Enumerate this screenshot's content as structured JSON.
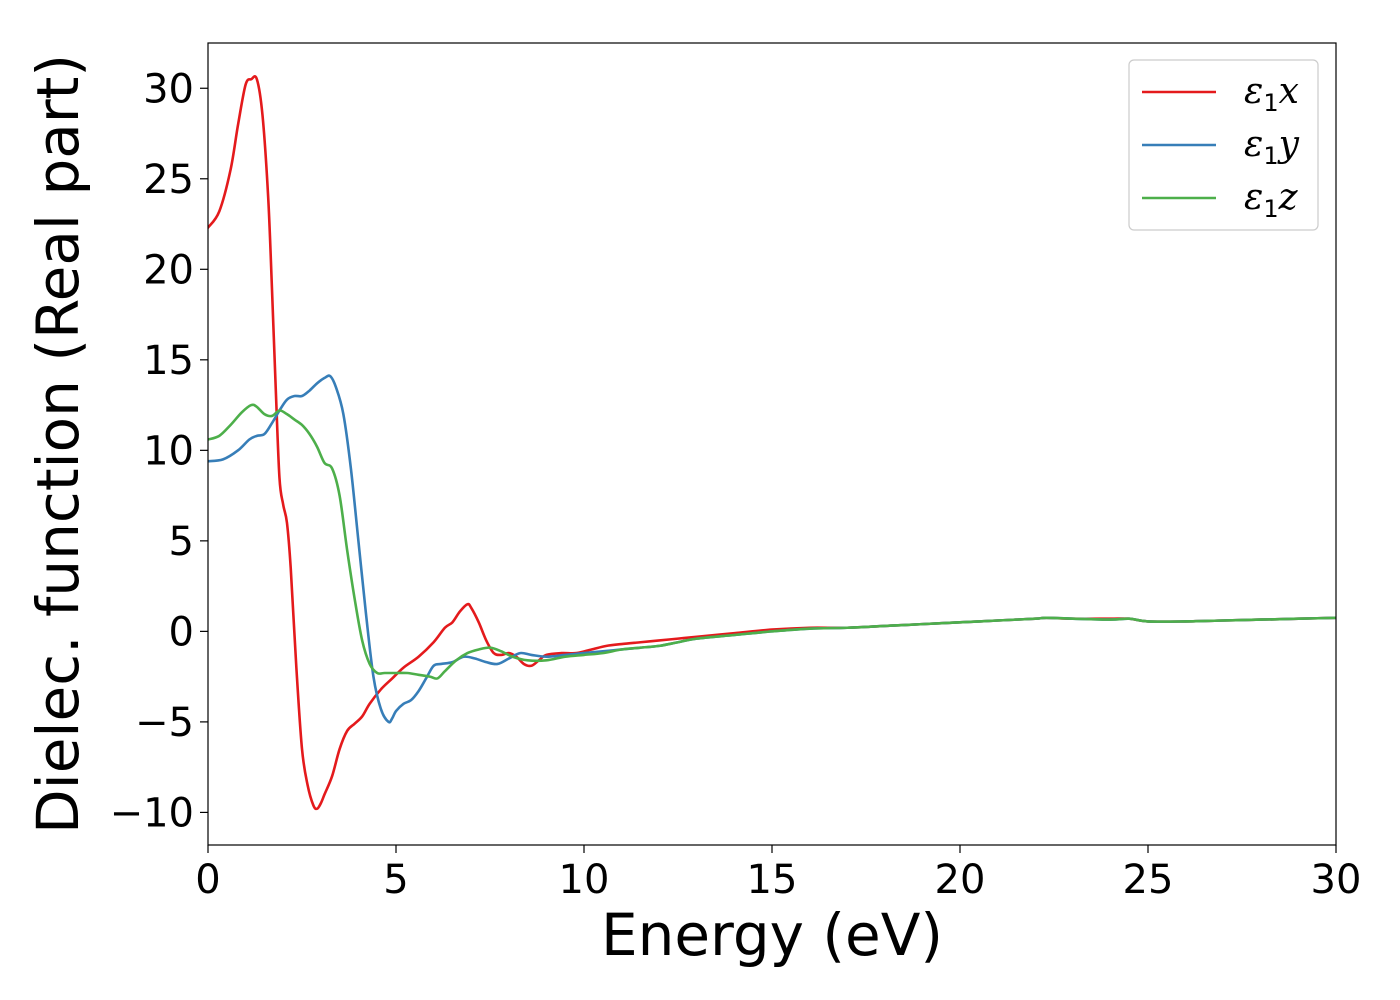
{
  "chart_data": {
    "type": "line",
    "title": "",
    "xlabel": "Energy (eV)",
    "ylabel": "Dielec. function (Real part)",
    "xlim": [
      0,
      30
    ],
    "ylim": [
      -11.8,
      32.5
    ],
    "xticks": [
      0,
      5,
      10,
      15,
      20,
      25,
      30
    ],
    "xtick_labels": [
      "0",
      "5",
      "10",
      "15",
      "20",
      "25",
      "30"
    ],
    "yticks": [
      -10,
      -5,
      0,
      5,
      10,
      15,
      20,
      25,
      30
    ],
    "ytick_labels": [
      "−10",
      "−5",
      "0",
      "5",
      "10",
      "15",
      "20",
      "25",
      "30"
    ],
    "grid": false,
    "legend_position": "top-right",
    "series": [
      {
        "name": "ε1x",
        "legend_main": "ε",
        "legend_sub": "1",
        "legend_var": "x",
        "color": "#e41a1c",
        "x": [
          0,
          0.3,
          0.6,
          0.8,
          1.0,
          1.15,
          1.3,
          1.45,
          1.6,
          1.7,
          1.8,
          1.9,
          2.0,
          2.1,
          2.2,
          2.35,
          2.5,
          2.65,
          2.8,
          2.9,
          3.0,
          3.1,
          3.3,
          3.5,
          3.7,
          3.9,
          4.1,
          4.3,
          4.6,
          4.9,
          5.2,
          5.6,
          6.0,
          6.3,
          6.5,
          6.7,
          6.9,
          7.0,
          7.2,
          7.4,
          7.6,
          7.8,
          8.0,
          8.2,
          8.4,
          8.6,
          8.8,
          9.0,
          9.4,
          9.8,
          10.2,
          10.6,
          11.0,
          11.5,
          12.0,
          12.5,
          13.0,
          14.0,
          15.0,
          16.0,
          17.0,
          18.0,
          19.0,
          20.0,
          21.0,
          22.0,
          22.3,
          23.0,
          24.0,
          24.5,
          25.0,
          26.0,
          27.0,
          28.0,
          29.0,
          30.0
        ],
        "y": [
          22.3,
          23.2,
          25.5,
          28.0,
          30.2,
          30.5,
          30.5,
          28.5,
          24.0,
          19.0,
          13.5,
          8.5,
          7.0,
          6.0,
          3.5,
          -2.0,
          -6.5,
          -8.5,
          -9.6,
          -9.8,
          -9.5,
          -9.0,
          -8.0,
          -6.5,
          -5.5,
          -5.1,
          -4.7,
          -4.0,
          -3.2,
          -2.6,
          -2.0,
          -1.4,
          -0.6,
          0.2,
          0.5,
          1.1,
          1.5,
          1.3,
          0.5,
          -0.5,
          -1.2,
          -1.3,
          -1.2,
          -1.4,
          -1.8,
          -1.9,
          -1.6,
          -1.3,
          -1.2,
          -1.2,
          -1.0,
          -0.8,
          -0.7,
          -0.6,
          -0.5,
          -0.4,
          -0.3,
          -0.1,
          0.1,
          0.2,
          0.2,
          0.3,
          0.4,
          0.5,
          0.6,
          0.7,
          0.75,
          0.7,
          0.7,
          0.7,
          0.55,
          0.55,
          0.6,
          0.65,
          0.7,
          0.75
        ]
      },
      {
        "name": "ε1y",
        "legend_main": "ε",
        "legend_sub": "1",
        "legend_var": "y",
        "color": "#377eb8",
        "x": [
          0,
          0.4,
          0.8,
          1.1,
          1.3,
          1.5,
          1.7,
          1.9,
          2.1,
          2.3,
          2.5,
          2.7,
          2.9,
          3.1,
          3.25,
          3.4,
          3.6,
          3.8,
          4.0,
          4.2,
          4.4,
          4.6,
          4.8,
          4.9,
          5.0,
          5.2,
          5.4,
          5.6,
          5.8,
          6.0,
          6.2,
          6.5,
          6.8,
          7.1,
          7.4,
          7.7,
          8.0,
          8.3,
          8.6,
          9.0,
          9.5,
          10.0,
          10.5,
          11.0,
          11.5,
          12.0,
          12.5,
          13.0,
          14.0,
          15.0,
          16.0,
          17.0,
          18.0,
          19.0,
          20.0,
          21.0,
          22.0,
          22.3,
          23.0,
          24.0,
          24.5,
          25.0,
          26.0,
          27.0,
          28.0,
          29.0,
          30.0
        ],
        "y": [
          9.4,
          9.5,
          10.0,
          10.6,
          10.8,
          10.9,
          11.5,
          12.2,
          12.8,
          13.0,
          13.0,
          13.3,
          13.7,
          14.0,
          14.1,
          13.5,
          12.0,
          9.0,
          5.0,
          1.0,
          -2.5,
          -4.3,
          -5.0,
          -4.8,
          -4.4,
          -4.0,
          -3.8,
          -3.3,
          -2.6,
          -1.9,
          -1.8,
          -1.7,
          -1.4,
          -1.5,
          -1.7,
          -1.8,
          -1.5,
          -1.2,
          -1.3,
          -1.4,
          -1.3,
          -1.2,
          -1.1,
          -1.0,
          -0.9,
          -0.8,
          -0.6,
          -0.4,
          -0.2,
          0.0,
          0.15,
          0.2,
          0.3,
          0.4,
          0.5,
          0.6,
          0.7,
          0.75,
          0.7,
          0.65,
          0.7,
          0.55,
          0.55,
          0.6,
          0.65,
          0.7,
          0.75
        ]
      },
      {
        "name": "ε1z",
        "legend_main": "ε",
        "legend_sub": "1",
        "legend_var": "z",
        "color": "#4daf4a",
        "x": [
          0,
          0.3,
          0.6,
          0.9,
          1.15,
          1.3,
          1.5,
          1.7,
          1.9,
          2.1,
          2.3,
          2.5,
          2.7,
          2.9,
          3.1,
          3.3,
          3.5,
          3.7,
          3.9,
          4.1,
          4.3,
          4.5,
          4.7,
          5.0,
          5.3,
          5.6,
          5.9,
          6.1,
          6.3,
          6.6,
          6.9,
          7.2,
          7.5,
          7.8,
          8.1,
          8.5,
          9.0,
          9.5,
          10.0,
          10.5,
          11.0,
          11.5,
          12.0,
          12.5,
          13.0,
          14.0,
          15.0,
          16.0,
          17.0,
          18.0,
          19.0,
          20.0,
          21.0,
          22.0,
          22.3,
          23.0,
          24.0,
          24.5,
          25.0,
          26.0,
          27.0,
          28.0,
          29.0,
          30.0
        ],
        "y": [
          10.6,
          10.8,
          11.4,
          12.1,
          12.5,
          12.4,
          12.0,
          11.9,
          12.2,
          12.0,
          11.7,
          11.4,
          10.9,
          10.2,
          9.3,
          9.0,
          7.5,
          4.5,
          1.8,
          -0.5,
          -1.8,
          -2.3,
          -2.3,
          -2.3,
          -2.3,
          -2.4,
          -2.5,
          -2.6,
          -2.2,
          -1.6,
          -1.2,
          -1.0,
          -0.9,
          -1.1,
          -1.4,
          -1.6,
          -1.6,
          -1.4,
          -1.3,
          -1.2,
          -1.0,
          -0.9,
          -0.8,
          -0.6,
          -0.4,
          -0.2,
          0.0,
          0.15,
          0.2,
          0.3,
          0.4,
          0.5,
          0.6,
          0.7,
          0.75,
          0.7,
          0.65,
          0.7,
          0.55,
          0.55,
          0.6,
          0.65,
          0.7,
          0.75
        ]
      }
    ]
  }
}
